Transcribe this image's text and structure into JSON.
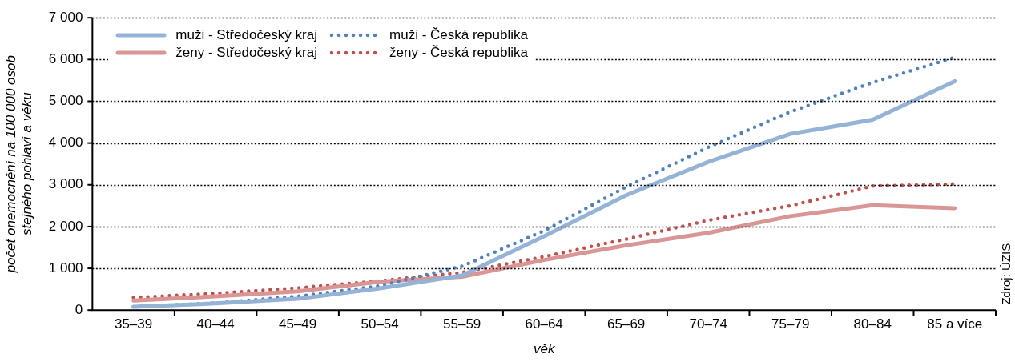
{
  "chart_data": {
    "type": "line",
    "xlabel": "věk",
    "ylabel": "počet onemocnění na 100 000 osob\nstejného pohlaví a věku",
    "categories": [
      "35–39",
      "40–44",
      "45–49",
      "50–54",
      "55–59",
      "60–64",
      "65–69",
      "70–74",
      "75–79",
      "80–84",
      "85 a více"
    ],
    "series": [
      {
        "name": "muži - Středočeský kraj",
        "color": "#95b3d7",
        "line_style": "solid",
        "values": [
          80,
          160,
          270,
          520,
          830,
          1770,
          2750,
          3550,
          4220,
          4560,
          5480
        ]
      },
      {
        "name": "muži - Česká republika",
        "color": "#4f81bd",
        "line_style": "dotted",
        "values": [
          80,
          170,
          330,
          580,
          1050,
          1900,
          2950,
          3900,
          4750,
          5450,
          6050
        ]
      },
      {
        "name": "ženy - Středočeský kraj",
        "color": "#d99694",
        "line_style": "solid",
        "values": [
          230,
          330,
          450,
          680,
          800,
          1200,
          1550,
          1850,
          2250,
          2510,
          2440
        ]
      },
      {
        "name": "ženy - Česká republika",
        "color": "#c0504d",
        "line_style": "dotted",
        "values": [
          300,
          400,
          530,
          700,
          900,
          1280,
          1700,
          2150,
          2500,
          2970,
          3020
        ]
      }
    ],
    "ylim": [
      0,
      7000
    ],
    "yticks": [
      0,
      {
        "value": 1000,
        "label": "1 000"
      },
      {
        "value": 2000,
        "label": "2 000"
      },
      {
        "value": 3000,
        "label": "3 000"
      },
      {
        "value": 4000,
        "label": "4 000"
      },
      {
        "value": 5000,
        "label": "5 000"
      },
      {
        "value": 6000,
        "label": "6 000"
      },
      {
        "value": 7000,
        "label": "7 000"
      }
    ],
    "grid": "y",
    "legend": "top left",
    "marker": "none",
    "annotations": [
      "Zdroj: ÚZIS"
    ]
  }
}
